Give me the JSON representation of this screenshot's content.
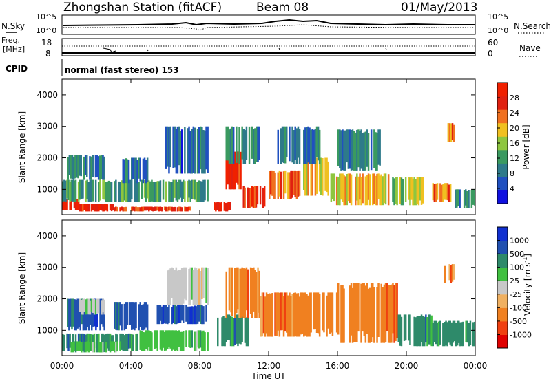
{
  "header": {
    "station": "Zhongshan Station (fitACF)",
    "beam": "Beam 08",
    "date": "01/May/2013"
  },
  "strip_nsky": {
    "left_label": "N.Sky",
    "ticks": [
      "10^5",
      "10^0"
    ],
    "right_label": "N.Search"
  },
  "strip_freq": {
    "left_label_1": "Freq.",
    "left_label_2": "[MHz]",
    "left_ticks": [
      "18",
      "8"
    ],
    "right_ticks": [
      "60",
      "0"
    ],
    "right_label": "Nave"
  },
  "strip_cpid": {
    "label": "CPID",
    "mode": "normal (fast stereo) 153"
  },
  "colors": {
    "power_scale": [
      "#1010e0",
      "#2050c0",
      "#2e7a8a",
      "#3a9a60",
      "#8ec63f",
      "#f0c020",
      "#f07020",
      "#e02010",
      "#f02000"
    ],
    "velocity_scale": [
      "#e00000",
      "#f04010",
      "#f08020",
      "#f0b060",
      "#c8c8c8",
      "#40c040",
      "#2e8a6a",
      "#2050b0",
      "#1030d0"
    ]
  },
  "chart_data": [
    {
      "type": "heatmap",
      "quantity": "power",
      "ylabel": "Slant Range [km]",
      "yticks": [
        "4000",
        "3000",
        "2000",
        "1000"
      ],
      "ylim": [
        200,
        4500
      ],
      "xlim": [
        0,
        24
      ],
      "colorbar_label": "Power [dB]",
      "colorbar_ticks": [
        "28",
        "24",
        "20",
        "16",
        "12",
        "8",
        "4"
      ],
      "colorbar_range": [
        0,
        32
      ],
      "blobs": [
        {
          "t0": 0.0,
          "t1": 1.0,
          "r0": 350,
          "r1": 700,
          "v": 30
        },
        {
          "t0": 1.0,
          "t1": 3.0,
          "r0": 300,
          "r1": 550,
          "v": 28
        },
        {
          "t0": 3.0,
          "t1": 7.5,
          "r0": 300,
          "r1": 450,
          "v": 26
        },
        {
          "t0": 0.0,
          "t1": 8.5,
          "r0": 600,
          "r1": 1300,
          "v": 12
        },
        {
          "t0": 0.3,
          "t1": 2.5,
          "r0": 1300,
          "r1": 2100,
          "v": 9
        },
        {
          "t0": 3.5,
          "t1": 5.0,
          "r0": 1200,
          "r1": 2000,
          "v": 8
        },
        {
          "t0": 6.0,
          "t1": 8.5,
          "r0": 1500,
          "r1": 3000,
          "v": 7
        },
        {
          "t0": 8.8,
          "t1": 9.8,
          "r0": 300,
          "r1": 600,
          "v": 30
        },
        {
          "t0": 9.5,
          "t1": 10.5,
          "r0": 1000,
          "r1": 2200,
          "v": 28
        },
        {
          "t0": 10.5,
          "t1": 11.8,
          "r0": 400,
          "r1": 1100,
          "v": 26
        },
        {
          "t0": 9.5,
          "t1": 11.5,
          "r0": 1800,
          "r1": 3000,
          "v": 10
        },
        {
          "t0": 12.0,
          "t1": 14.0,
          "r0": 700,
          "r1": 1600,
          "v": 24
        },
        {
          "t0": 14.0,
          "t1": 15.5,
          "r0": 800,
          "r1": 2000,
          "v": 18
        },
        {
          "t0": 12.5,
          "t1": 15.0,
          "r0": 1800,
          "r1": 3000,
          "v": 9
        },
        {
          "t0": 15.5,
          "t1": 19.0,
          "r0": 500,
          "r1": 1500,
          "v": 20
        },
        {
          "t0": 16.0,
          "t1": 18.5,
          "r0": 1600,
          "r1": 2900,
          "v": 10
        },
        {
          "t0": 19.0,
          "t1": 21.0,
          "r0": 500,
          "r1": 1400,
          "v": 16
        },
        {
          "t0": 21.5,
          "t1": 22.6,
          "r0": 600,
          "r1": 1200,
          "v": 22
        },
        {
          "t0": 22.3,
          "t1": 22.8,
          "r0": 2500,
          "r1": 3100,
          "v": 24
        },
        {
          "t0": 22.8,
          "t1": 24.0,
          "r0": 400,
          "r1": 1000,
          "v": 10
        }
      ]
    },
    {
      "type": "heatmap",
      "quantity": "velocity",
      "ylabel": "Slant Range [km]",
      "xlabel": "Time UT",
      "xticks": [
        "00:00",
        "04:00",
        "08:00",
        "12:00",
        "16:00",
        "20:00",
        "00:00"
      ],
      "yticks": [
        "4000",
        "3000",
        "2000",
        "1000"
      ],
      "ylim": [
        200,
        4500
      ],
      "xlim": [
        0,
        24
      ],
      "colorbar_label": "Velocity [m s",
      "colorbar_unit_exp": "-1",
      "colorbar_ticks": [
        "1000",
        "500",
        "100",
        "25",
        "-25",
        "-100",
        "-500",
        "-1000"
      ],
      "blobs": [
        {
          "t0": 0.0,
          "t1": 4.5,
          "r0": 350,
          "r1": 900,
          "c": 6
        },
        {
          "t0": 0.5,
          "t1": 3.5,
          "r0": 300,
          "r1": 650,
          "c": 5
        },
        {
          "t0": 4.5,
          "t1": 8.5,
          "r0": 350,
          "r1": 1000,
          "c": 5
        },
        {
          "t0": 0.2,
          "t1": 2.5,
          "r0": 1000,
          "r1": 2000,
          "c": 7
        },
        {
          "t0": 1.0,
          "t1": 2.5,
          "r0": 1500,
          "r1": 2000,
          "c": 4
        },
        {
          "t0": 3.0,
          "t1": 5.0,
          "r0": 1000,
          "r1": 1900,
          "c": 7
        },
        {
          "t0": 6.0,
          "t1": 8.5,
          "r0": 1800,
          "r1": 3000,
          "c": 4
        },
        {
          "t0": 5.5,
          "t1": 8.5,
          "r0": 1200,
          "r1": 1800,
          "c": 7
        },
        {
          "t0": 9.0,
          "t1": 11.0,
          "r0": 500,
          "r1": 1500,
          "c": 6
        },
        {
          "t0": 9.5,
          "t1": 11.5,
          "r0": 1400,
          "r1": 3000,
          "c": 2
        },
        {
          "t0": 11.5,
          "t1": 16.0,
          "r0": 800,
          "r1": 2200,
          "c": 2
        },
        {
          "t0": 16.0,
          "t1": 19.5,
          "r0": 600,
          "r1": 2500,
          "c": 2
        },
        {
          "t0": 19.5,
          "t1": 21.5,
          "r0": 500,
          "r1": 1500,
          "c": 6
        },
        {
          "t0": 21.5,
          "t1": 24.0,
          "r0": 500,
          "r1": 1300,
          "c": 6
        },
        {
          "t0": 22.2,
          "t1": 22.8,
          "r0": 2500,
          "r1": 3100,
          "c": 2
        }
      ]
    }
  ]
}
